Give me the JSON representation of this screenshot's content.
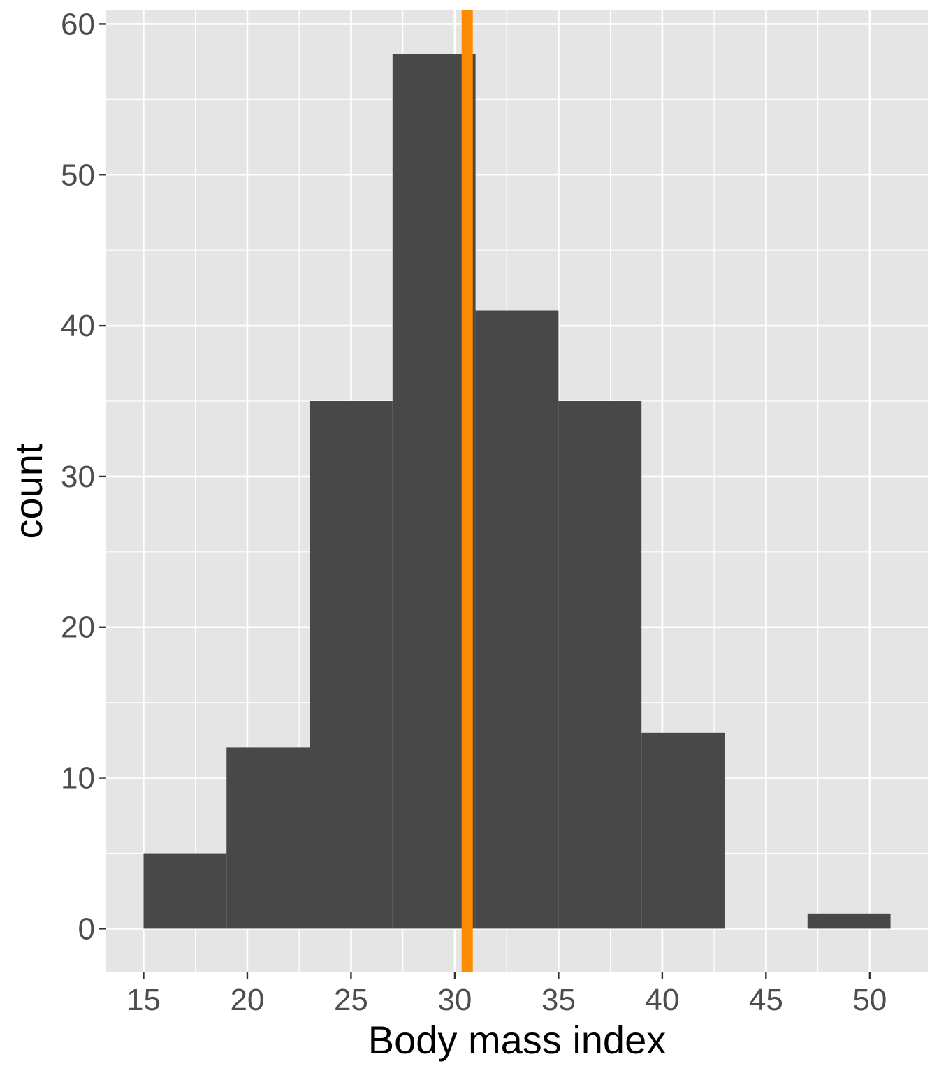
{
  "chart_data": {
    "type": "histogram",
    "xlabel": "Body mass index",
    "ylabel": "count",
    "xlim": [
      13.2,
      52.8
    ],
    "ylim": [
      -2.9,
      60.9
    ],
    "x_ticks": [
      15,
      20,
      25,
      30,
      35,
      40,
      45,
      50
    ],
    "y_ticks": [
      0,
      10,
      20,
      30,
      40,
      50,
      60
    ],
    "bin_width": 4,
    "bins": [
      {
        "x0": 15,
        "x1": 19,
        "count": 5
      },
      {
        "x0": 19,
        "x1": 23,
        "count": 12
      },
      {
        "x0": 23,
        "x1": 27,
        "count": 35
      },
      {
        "x0": 27,
        "x1": 31,
        "count": 58
      },
      {
        "x0": 31,
        "x1": 35,
        "count": 41
      },
      {
        "x0": 35,
        "x1": 39,
        "count": 35
      },
      {
        "x0": 39,
        "x1": 43,
        "count": 13
      },
      {
        "x0": 43,
        "x1": 47,
        "count": 0
      },
      {
        "x0": 47,
        "x1": 51,
        "count": 1
      }
    ],
    "vline": {
      "x": 30.6,
      "color": "#ff8c00"
    },
    "grid": true,
    "colors": {
      "panel": "#e5e5e5",
      "grid": "#ffffff",
      "bar": "#484848",
      "tick": "#333333",
      "tick_label": "#4d4d4d"
    }
  }
}
